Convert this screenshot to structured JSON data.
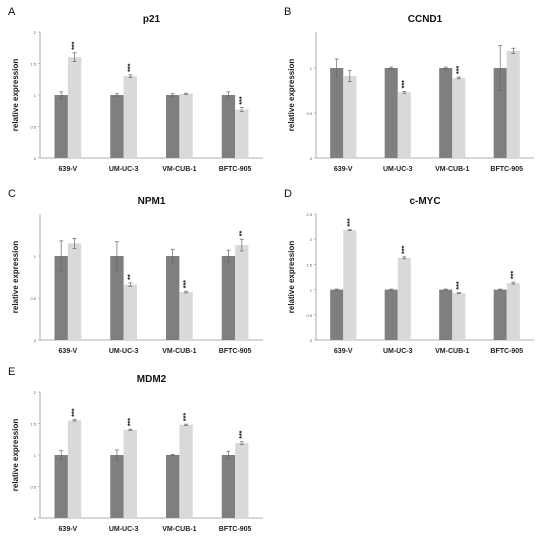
{
  "chart_data": [
    {
      "panel": "A",
      "type": "bar",
      "title": "p21",
      "ylabel": "relative expression",
      "ylim": [
        0,
        2
      ],
      "yticks": [
        0,
        0.5,
        1,
        1.5,
        2
      ],
      "categories": [
        "639-V",
        "UM-UC-3",
        "VM-CUB-1",
        "BFTC-905"
      ],
      "series": [
        {
          "values": [
            1,
            1,
            1,
            1
          ],
          "errors": [
            0.05,
            0.02,
            0.02,
            0.05
          ],
          "color": "#7f7f7f"
        },
        {
          "values": [
            1.6,
            1.3,
            1.02,
            0.77
          ],
          "errors": [
            0.07,
            0.02,
            0.01,
            0.03
          ],
          "color": "#d9d9d9"
        }
      ],
      "annotations": [
        "***",
        "***",
        "",
        "***"
      ],
      "grid": false
    },
    {
      "panel": "B",
      "type": "bar",
      "title": "CCND1",
      "ylabel": "relative expression",
      "ylim": [
        0,
        1.4
      ],
      "yticks": [
        0,
        0.5,
        1
      ],
      "categories": [
        "639-V",
        "UM-UC-3",
        "VM-CUB-1",
        "BFTC-905"
      ],
      "series": [
        {
          "values": [
            1,
            1,
            1,
            1
          ],
          "errors": [
            0.1,
            0.01,
            0.01,
            0.25
          ],
          "color": "#7f7f7f"
        },
        {
          "values": [
            0.91,
            0.73,
            0.89,
            1.19
          ],
          "errors": [
            0.06,
            0.01,
            0.01,
            0.03
          ],
          "color": "#d9d9d9"
        }
      ],
      "annotations": [
        "",
        "***",
        "***",
        ""
      ],
      "grid": false
    },
    {
      "panel": "C",
      "type": "bar",
      "title": "NPM1",
      "ylabel": "relative expression",
      "ylim": [
        0,
        1.5
      ],
      "yticks": [
        0,
        0.5,
        1
      ],
      "categories": [
        "639-V",
        "UM-UC-3",
        "VM-CUB-1",
        "BFTC-905"
      ],
      "series": [
        {
          "values": [
            1,
            1,
            1,
            1
          ],
          "errors": [
            0.18,
            0.17,
            0.08,
            0.07
          ],
          "color": "#7f7f7f"
        },
        {
          "values": [
            1.15,
            0.66,
            0.57,
            1.13
          ],
          "errors": [
            0.06,
            0.02,
            0.01,
            0.07
          ],
          "color": "#d9d9d9"
        }
      ],
      "annotations": [
        "",
        "**",
        "***",
        "**"
      ],
      "grid": false
    },
    {
      "panel": "D",
      "type": "bar",
      "title": "c-MYC",
      "ylabel": "relative expression",
      "ylim": [
        0,
        2.5
      ],
      "yticks": [
        0,
        0.5,
        1,
        1.5,
        2,
        2.5
      ],
      "categories": [
        "639-V",
        "UM-UC-3",
        "VM-CUB-1",
        "BFTC-905"
      ],
      "series": [
        {
          "values": [
            1,
            1,
            1,
            1
          ],
          "errors": [
            0.01,
            0.01,
            0.01,
            0.01
          ],
          "color": "#7f7f7f"
        },
        {
          "values": [
            2.18,
            1.63,
            0.93,
            1.13
          ],
          "errors": [
            0.01,
            0.02,
            0.01,
            0.02
          ],
          "color": "#d9d9d9"
        }
      ],
      "annotations": [
        "***",
        "***",
        "***",
        "***"
      ],
      "grid": false
    },
    {
      "panel": "E",
      "type": "bar",
      "title": "MDM2",
      "ylabel": "relative expression",
      "ylim": [
        0,
        2
      ],
      "yticks": [
        0,
        0.5,
        1,
        1.5,
        2
      ],
      "categories": [
        "639-V",
        "UM-UC-3",
        "VM-CUB-1",
        "BFTC-905"
      ],
      "series": [
        {
          "values": [
            1,
            1,
            1,
            1
          ],
          "errors": [
            0.07,
            0.08,
            0.01,
            0.06
          ],
          "color": "#7f7f7f"
        },
        {
          "values": [
            1.55,
            1.4,
            1.48,
            1.19
          ],
          "errors": [
            0.01,
            0.01,
            0.01,
            0.02
          ],
          "color": "#d9d9d9"
        }
      ],
      "annotations": [
        "***",
        "***",
        "***",
        "***"
      ],
      "grid": false
    }
  ]
}
